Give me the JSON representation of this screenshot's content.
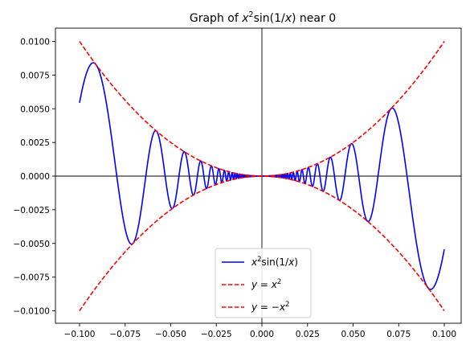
{
  "chart_data": {
    "type": "line",
    "title": {
      "base": "Graph of ",
      "var": "x",
      "sup": "2",
      "mid": "sin(1/",
      "var2": "x",
      "end": ") near 0"
    },
    "xlabel": "",
    "ylabel": "",
    "xlim": [
      -0.1,
      0.1
    ],
    "ylim": [
      -0.0109,
      0.0109
    ],
    "x_ticks": [
      "−0.100",
      "−0.075",
      "−0.050",
      "−0.025",
      "0.000",
      "0.025",
      "0.050",
      "0.075",
      "0.100"
    ],
    "x_tick_values": [
      -0.1,
      -0.075,
      -0.05,
      -0.025,
      0,
      0.025,
      0.05,
      0.075,
      0.1
    ],
    "y_ticks": [
      "−0.0100",
      "−0.0075",
      "−0.0050",
      "−0.0025",
      "0.0000",
      "0.0025",
      "0.0050",
      "0.0075",
      "0.0100"
    ],
    "y_tick_values": [
      -0.01,
      -0.0075,
      -0.005,
      -0.0025,
      0,
      0.0025,
      0.005,
      0.0075,
      0.01
    ],
    "grid": false,
    "legend_position": "bottom-center",
    "series": [
      {
        "name": "x²sin(1/x)",
        "label_parts": [
          "x",
          "2",
          "sin(1/",
          "x",
          ")"
        ],
        "function": "x^2*sin(1/x)",
        "color": "#0000ff",
        "style": "solid"
      },
      {
        "name": "y = x²",
        "label_parts": [
          "y",
          " = ",
          "x",
          "2"
        ],
        "function": "x^2",
        "color": "#ff0000",
        "style": "dashed"
      },
      {
        "name": "y = −x²",
        "label_parts": [
          "y",
          " = −",
          "x",
          "2"
        ],
        "function": "-x^2",
        "color": "#ff0000",
        "style": "dashed"
      }
    ],
    "axes_lines": {
      "x0": true,
      "y0": true,
      "color": "#000000"
    }
  }
}
